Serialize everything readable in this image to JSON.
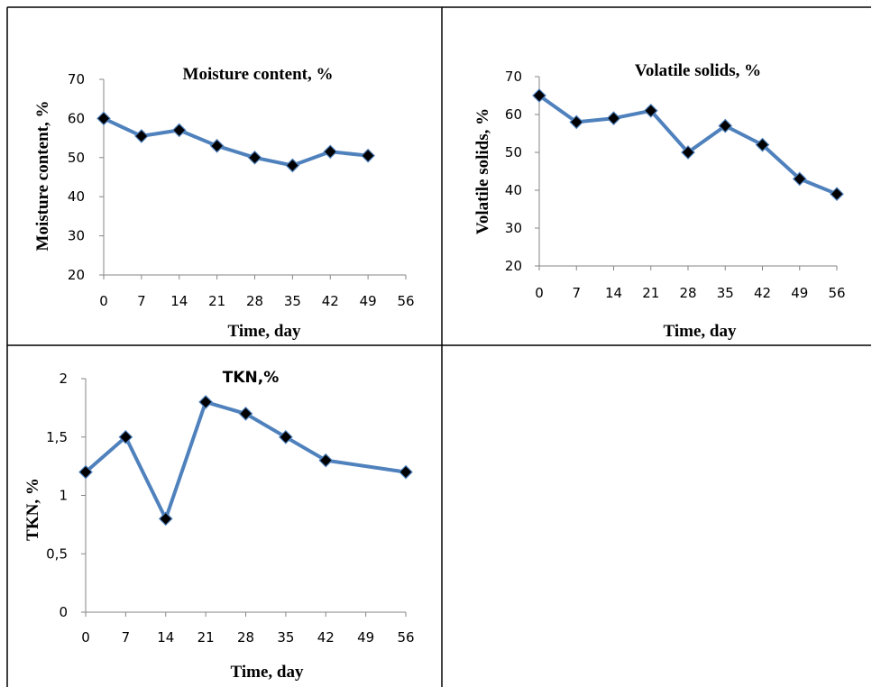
{
  "colors": {
    "series_line": "#4f81bd",
    "marker_fill": "#000000",
    "marker_stroke": "#4f81bd",
    "axis": "#868686",
    "cell_border": "#000000"
  },
  "chart_data": [
    {
      "type": "line",
      "title": "Moisture content, %",
      "xlabel": "Time, day",
      "ylabel": "Moisture content, %",
      "x_ticks": [
        0,
        7,
        14,
        21,
        28,
        35,
        42,
        49,
        56
      ],
      "y_ticks": [
        20,
        30,
        40,
        50,
        60,
        70
      ],
      "y_tick_labels": [
        "20",
        "30",
        "40",
        "50",
        "60",
        "70"
      ],
      "xlim": [
        0,
        56
      ],
      "ylim": [
        20,
        70
      ],
      "grid": false,
      "legend": "none",
      "marker": "diamond",
      "x": [
        0,
        7,
        14,
        21,
        28,
        35,
        42,
        49
      ],
      "values": [
        60,
        55.5,
        57,
        53,
        50,
        48,
        51.5,
        50.5
      ]
    },
    {
      "type": "line",
      "title": "Volatile solids, %",
      "xlabel": "Time, day",
      "ylabel": "Volatile solids, %",
      "x_ticks": [
        0,
        7,
        14,
        21,
        28,
        35,
        42,
        49,
        56
      ],
      "y_ticks": [
        20,
        30,
        40,
        50,
        60,
        70
      ],
      "y_tick_labels": [
        "20",
        "30",
        "40",
        "50",
        "60",
        "70"
      ],
      "xlim": [
        0,
        56
      ],
      "ylim": [
        20,
        70
      ],
      "grid": false,
      "legend": "none",
      "marker": "diamond",
      "x": [
        0,
        7,
        14,
        21,
        28,
        35,
        42,
        49,
        56
      ],
      "values": [
        65,
        58,
        59,
        61,
        50,
        57,
        52,
        43,
        39
      ]
    },
    {
      "type": "line",
      "title": "TKN,%",
      "xlabel": "Time, day",
      "ylabel": "TKN, %",
      "x_ticks": [
        0,
        7,
        14,
        21,
        28,
        35,
        42,
        49,
        56
      ],
      "y_ticks": [
        0,
        0.5,
        1,
        1.5,
        2
      ],
      "y_tick_labels": [
        "0",
        "0,5",
        "1",
        "1,5",
        "2"
      ],
      "xlim": [
        0,
        56
      ],
      "ylim": [
        0,
        2
      ],
      "grid": false,
      "legend": "none",
      "marker": "diamond",
      "x": [
        0,
        7,
        14,
        21,
        28,
        35,
        42,
        56
      ],
      "values": [
        1.2,
        1.5,
        0.8,
        1.8,
        1.7,
        1.5,
        1.3,
        1.2
      ]
    }
  ]
}
